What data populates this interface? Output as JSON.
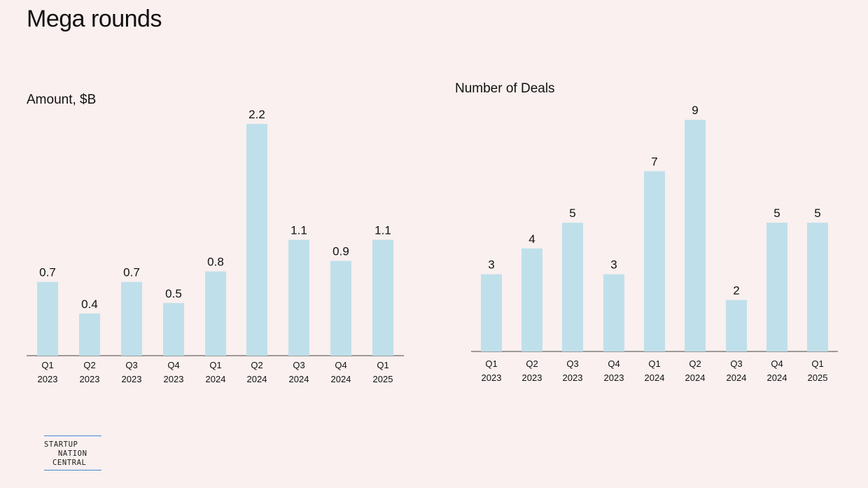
{
  "page": {
    "title": "Mega rounds"
  },
  "logo": {
    "line1": "STARTUP",
    "line2": "NATION",
    "line3": "CENTRAL",
    "accent": "#4a86d8"
  },
  "colors": {
    "bar": "#bfe0ea",
    "background": "#f9f0ef"
  },
  "chart_data": [
    {
      "type": "bar",
      "title": "Amount, $B",
      "categories": [
        [
          "Q1",
          "2023"
        ],
        [
          "Q2",
          "2023"
        ],
        [
          "Q3",
          "2023"
        ],
        [
          "Q4",
          "2023"
        ],
        [
          "Q1",
          "2024"
        ],
        [
          "Q2",
          "2024"
        ],
        [
          "Q3",
          "2024"
        ],
        [
          "Q4",
          "2024"
        ],
        [
          "Q1",
          "2025"
        ]
      ],
      "values": [
        0.7,
        0.4,
        0.7,
        0.5,
        0.8,
        2.2,
        1.1,
        0.9,
        1.1
      ],
      "labels": [
        "0.7",
        "0.4",
        "0.7",
        "0.5",
        "0.8",
        "2.2",
        "1.1",
        "0.9",
        "1.1"
      ],
      "ylim": [
        0,
        2.2
      ],
      "grid": false,
      "legend": "none"
    },
    {
      "type": "bar",
      "title": "Number of Deals",
      "categories": [
        [
          "Q1",
          "2023"
        ],
        [
          "Q2",
          "2023"
        ],
        [
          "Q3",
          "2023"
        ],
        [
          "Q4",
          "2023"
        ],
        [
          "Q1",
          "2024"
        ],
        [
          "Q2",
          "2024"
        ],
        [
          "Q3",
          "2024"
        ],
        [
          "Q4",
          "2024"
        ],
        [
          "Q1",
          "2025"
        ]
      ],
      "values": [
        3,
        4,
        5,
        3,
        7,
        9,
        2,
        5,
        5
      ],
      "labels": [
        "3",
        "4",
        "5",
        "3",
        "7",
        "9",
        "2",
        "5",
        "5"
      ],
      "ylim": [
        0,
        9
      ],
      "grid": false,
      "legend": "none"
    }
  ]
}
